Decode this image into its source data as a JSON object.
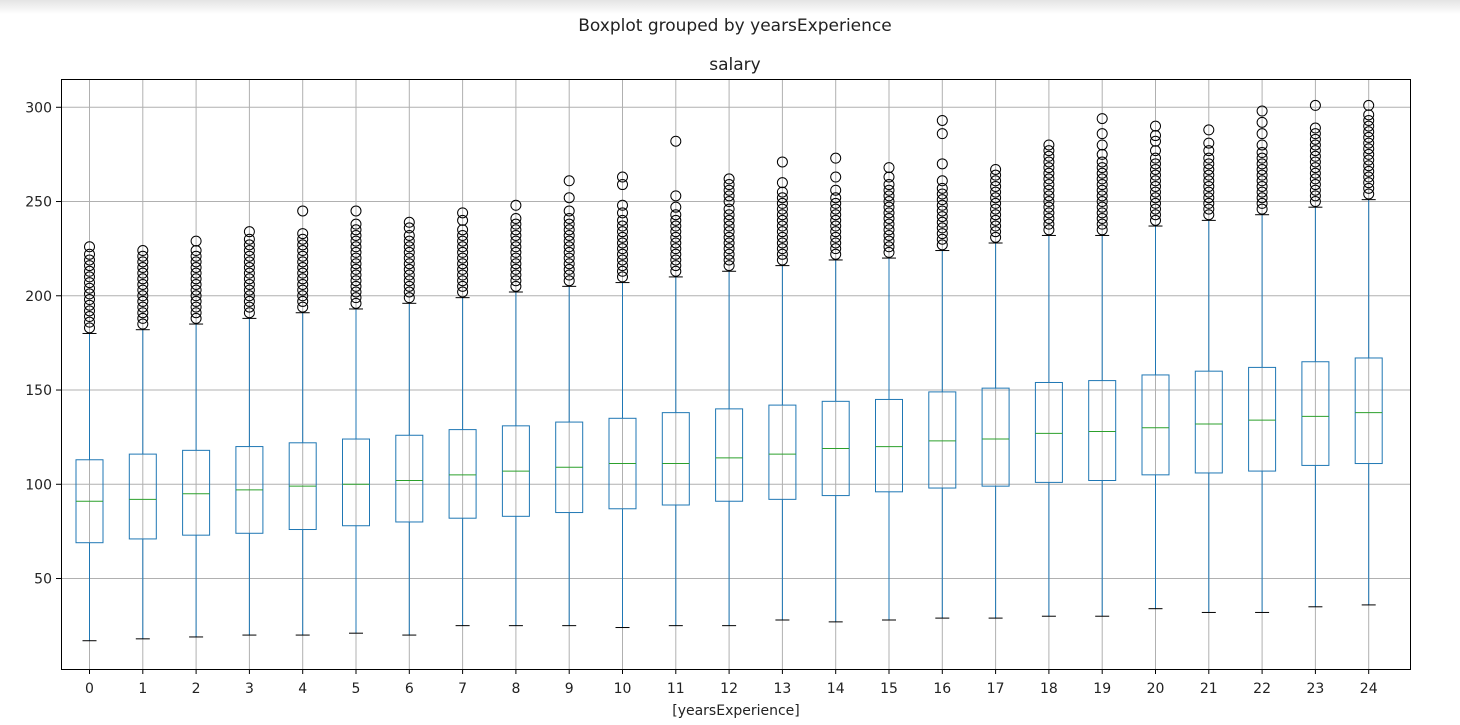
{
  "chart_data": {
    "type": "boxplot",
    "suptitle": "Boxplot grouped by yearsExperience",
    "title": "salary",
    "xlabel": "[yearsExperience]",
    "ylabel": "",
    "ylim": [
      2,
      315
    ],
    "yticks": [
      50,
      100,
      150,
      200,
      250,
      300
    ],
    "grid": true,
    "colors": {
      "box": "#1f77b4",
      "median": "#2ca02c",
      "whisker_cap": "#000000",
      "flier": "#000000",
      "grid": "#b0b0b0"
    },
    "categories": [
      "0",
      "1",
      "2",
      "3",
      "4",
      "5",
      "6",
      "7",
      "8",
      "9",
      "10",
      "11",
      "12",
      "13",
      "14",
      "15",
      "16",
      "17",
      "18",
      "19",
      "20",
      "21",
      "22",
      "23",
      "24"
    ],
    "boxes": [
      {
        "whislo": 17,
        "q1": 69,
        "med": 91,
        "q3": 113,
        "whishi": 180,
        "fliers": [
          183,
          186,
          189,
          192,
          195,
          198,
          201,
          204,
          207,
          210,
          213,
          216,
          219,
          222,
          226
        ]
      },
      {
        "whislo": 18,
        "q1": 71,
        "med": 92,
        "q3": 116,
        "whishi": 182,
        "fliers": [
          185,
          188,
          191,
          194,
          197,
          200,
          203,
          206,
          209,
          212,
          215,
          218,
          221,
          224
        ]
      },
      {
        "whislo": 19,
        "q1": 73,
        "med": 95,
        "q3": 118,
        "whishi": 185,
        "fliers": [
          188,
          191,
          194,
          197,
          200,
          203,
          206,
          209,
          212,
          215,
          218,
          221,
          224,
          229
        ]
      },
      {
        "whislo": 20,
        "q1": 74,
        "med": 97,
        "q3": 120,
        "whishi": 188,
        "fliers": [
          191,
          194,
          197,
          200,
          203,
          206,
          209,
          212,
          215,
          218,
          221,
          224,
          227,
          230,
          234
        ]
      },
      {
        "whislo": 20,
        "q1": 76,
        "med": 99,
        "q3": 122,
        "whishi": 191,
        "fliers": [
          194,
          197,
          200,
          203,
          206,
          209,
          212,
          215,
          218,
          221,
          224,
          227,
          230,
          233,
          245
        ]
      },
      {
        "whislo": 21,
        "q1": 78,
        "med": 100,
        "q3": 124,
        "whishi": 193,
        "fliers": [
          196,
          199,
          202,
          205,
          208,
          211,
          214,
          217,
          220,
          223,
          226,
          229,
          232,
          235,
          238,
          245
        ]
      },
      {
        "whislo": 20,
        "q1": 80,
        "med": 102,
        "q3": 126,
        "whishi": 196,
        "fliers": [
          199,
          202,
          205,
          208,
          211,
          214,
          217,
          220,
          223,
          226,
          229,
          232,
          236,
          239
        ]
      },
      {
        "whislo": 25,
        "q1": 82,
        "med": 105,
        "q3": 129,
        "whishi": 199,
        "fliers": [
          202,
          205,
          208,
          211,
          214,
          217,
          220,
          223,
          226,
          229,
          232,
          235,
          240,
          244
        ]
      },
      {
        "whislo": 25,
        "q1": 83,
        "med": 107,
        "q3": 131,
        "whishi": 202,
        "fliers": [
          205,
          208,
          211,
          214,
          217,
          220,
          223,
          226,
          229,
          232,
          235,
          238,
          241,
          248
        ]
      },
      {
        "whislo": 25,
        "q1": 85,
        "med": 109,
        "q3": 133,
        "whishi": 205,
        "fliers": [
          208,
          211,
          214,
          217,
          220,
          223,
          226,
          229,
          232,
          235,
          238,
          241,
          245,
          252,
          261
        ]
      },
      {
        "whislo": 24,
        "q1": 87,
        "med": 111,
        "q3": 135,
        "whishi": 207,
        "fliers": [
          210,
          213,
          216,
          219,
          222,
          225,
          228,
          231,
          234,
          237,
          240,
          244,
          248,
          259,
          263
        ]
      },
      {
        "whislo": 25,
        "q1": 89,
        "med": 111,
        "q3": 138,
        "whishi": 210,
        "fliers": [
          213,
          216,
          219,
          222,
          225,
          228,
          231,
          234,
          237,
          240,
          243,
          247,
          253,
          282
        ]
      },
      {
        "whislo": 25,
        "q1": 91,
        "med": 114,
        "q3": 140,
        "whishi": 213,
        "fliers": [
          216,
          219,
          222,
          225,
          228,
          231,
          234,
          237,
          240,
          243,
          246,
          250,
          253,
          256,
          259,
          262
        ]
      },
      {
        "whislo": 28,
        "q1": 92,
        "med": 116,
        "q3": 142,
        "whishi": 216,
        "fliers": [
          219,
          222,
          225,
          228,
          231,
          234,
          237,
          240,
          243,
          246,
          249,
          252,
          255,
          260,
          271
        ]
      },
      {
        "whislo": 27,
        "q1": 94,
        "med": 119,
        "q3": 144,
        "whishi": 219,
        "fliers": [
          222,
          225,
          228,
          231,
          234,
          237,
          240,
          243,
          246,
          249,
          252,
          256,
          263,
          273
        ]
      },
      {
        "whislo": 28,
        "q1": 96,
        "med": 120,
        "q3": 145,
        "whishi": 220,
        "fliers": [
          223,
          226,
          229,
          232,
          235,
          238,
          241,
          244,
          247,
          250,
          253,
          256,
          259,
          263,
          268
        ]
      },
      {
        "whislo": 29,
        "q1": 98,
        "med": 123,
        "q3": 149,
        "whishi": 224,
        "fliers": [
          227,
          230,
          233,
          236,
          239,
          242,
          245,
          248,
          251,
          254,
          257,
          261,
          270,
          286,
          293
        ]
      },
      {
        "whislo": 29,
        "q1": 99,
        "med": 124,
        "q3": 151,
        "whishi": 228,
        "fliers": [
          231,
          234,
          237,
          240,
          243,
          246,
          249,
          252,
          255,
          258,
          261,
          264,
          267
        ]
      },
      {
        "whislo": 30,
        "q1": 101,
        "med": 127,
        "q3": 154,
        "whishi": 232,
        "fliers": [
          235,
          238,
          241,
          244,
          247,
          250,
          253,
          256,
          259,
          262,
          265,
          268,
          271,
          274,
          277,
          280
        ]
      },
      {
        "whislo": 30,
        "q1": 102,
        "med": 128,
        "q3": 155,
        "whishi": 232,
        "fliers": [
          235,
          238,
          241,
          244,
          247,
          250,
          253,
          256,
          259,
          262,
          265,
          268,
          271,
          275,
          280,
          286,
          294
        ]
      },
      {
        "whislo": 34,
        "q1": 105,
        "med": 130,
        "q3": 158,
        "whishi": 237,
        "fliers": [
          240,
          243,
          246,
          249,
          252,
          255,
          258,
          261,
          264,
          267,
          270,
          273,
          277,
          282,
          285,
          290
        ]
      },
      {
        "whislo": 32,
        "q1": 106,
        "med": 132,
        "q3": 160,
        "whishi": 240,
        "fliers": [
          243,
          246,
          249,
          252,
          255,
          258,
          261,
          264,
          267,
          270,
          273,
          277,
          281,
          288
        ]
      },
      {
        "whislo": 32,
        "q1": 107,
        "med": 134,
        "q3": 162,
        "whishi": 243,
        "fliers": [
          246,
          249,
          252,
          255,
          258,
          261,
          264,
          267,
          270,
          273,
          276,
          280,
          286,
          292,
          298
        ]
      },
      {
        "whislo": 35,
        "q1": 110,
        "med": 136,
        "q3": 165,
        "whishi": 247,
        "fliers": [
          250,
          253,
          256,
          259,
          262,
          265,
          268,
          271,
          274,
          277,
          280,
          283,
          286,
          289,
          301
        ]
      },
      {
        "whislo": 36,
        "q1": 111,
        "med": 138,
        "q3": 167,
        "whishi": 251,
        "fliers": [
          254,
          257,
          260,
          263,
          266,
          269,
          272,
          275,
          278,
          281,
          284,
          287,
          290,
          293,
          296,
          301
        ]
      }
    ]
  }
}
